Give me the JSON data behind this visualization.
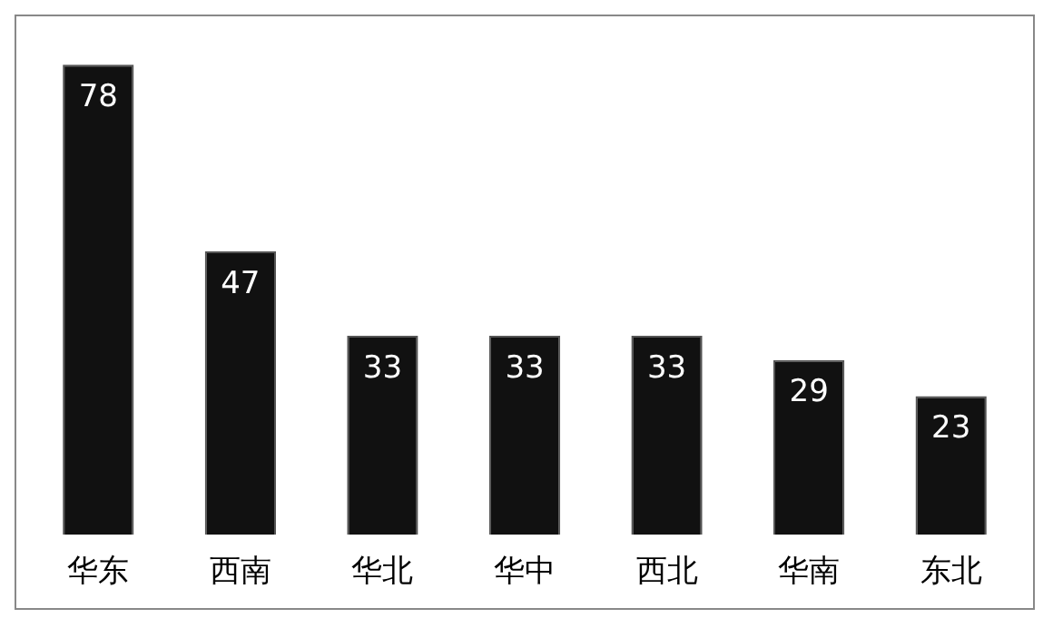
{
  "chart_data": {
    "type": "bar",
    "categories": [
      "华东",
      "西南",
      "华北",
      "华中",
      "西北",
      "华南",
      "东北"
    ],
    "values": [
      78,
      47,
      33,
      33,
      33,
      29,
      23
    ],
    "color": "#111111",
    "data_labels": true
  }
}
